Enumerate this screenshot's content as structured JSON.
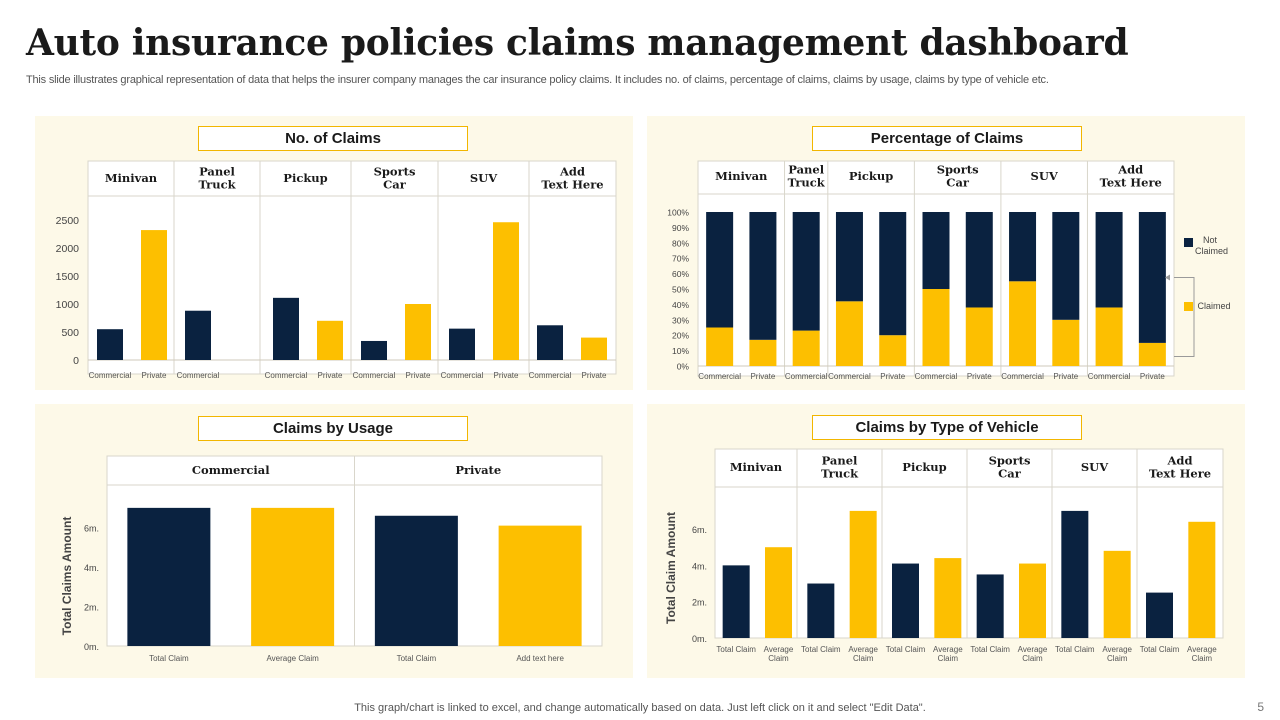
{
  "header": {
    "title": "Auto insurance policies claims management dashboard",
    "subtitle": "This slide illustrates graphical representation of data that helps the insurer company manages the car insurance policy claims. It includes no. of claims, percentage of claims, claims by usage, claims by type  of vehicle etc."
  },
  "footer": {
    "note": "This graph/chart is linked to excel,  and change automatically based on data. Just left click on it and select \"Edit Data\".",
    "page_number": "5"
  },
  "colors": {
    "navy": "#0a2240",
    "gold": "#fdbf00",
    "panel_bg": "#fdf9e8",
    "title_border": "#f2b600"
  },
  "panels": {
    "claims_count": {
      "title": "No. of Claims"
    },
    "claims_percent": {
      "title": "Percentage of Claims"
    },
    "claims_usage": {
      "title": "Claims by Usage"
    },
    "claims_vehicle": {
      "title": "Claims by Type of Vehicle"
    }
  },
  "legend": {
    "not_claimed": "Not Claimed",
    "claimed": "Claimed"
  },
  "chart_data": [
    {
      "id": "claims_count",
      "type": "bar",
      "title": "No. of Claims",
      "groups": [
        "Minivan",
        "Panel Truck",
        "Pickup",
        "Sports Car",
        "SUV",
        "Add Text Here"
      ],
      "categories": [
        "Commercial",
        "Private",
        "Commercial",
        "",
        "Commercial",
        "Private",
        "Commercial",
        "Private",
        "Commercial",
        "Private",
        "Commercial",
        "Private"
      ],
      "values": [
        550,
        2320,
        880,
        0,
        1110,
        700,
        340,
        1000,
        560,
        2460,
        620,
        400
      ],
      "bar_colors": [
        "navy",
        "gold",
        "navy",
        "gold",
        "navy",
        "gold",
        "navy",
        "gold",
        "navy",
        "gold",
        "navy",
        "gold"
      ],
      "yticks": [
        "0",
        "500",
        "1000",
        "1500",
        "2000",
        "2500"
      ],
      "ylim": [
        0,
        2500
      ]
    },
    {
      "id": "claims_percent",
      "type": "bar",
      "stacked": true,
      "title": "Percentage of Claims",
      "groups": [
        "Minivan",
        "Panel Truck",
        "Pickup",
        "Sports Car",
        "SUV",
        "Add Text Here"
      ],
      "categories": [
        "Commercial",
        "Private",
        "Commercial",
        "Commercial",
        "Private",
        "Commercial",
        "Private",
        "Commercial",
        "Private",
        "Commercial",
        "Private"
      ],
      "group_sizes": [
        2,
        1,
        2,
        2,
        2,
        2
      ],
      "series": [
        {
          "name": "Claimed",
          "values": [
            25,
            17,
            23,
            42,
            20,
            50,
            38,
            55,
            30,
            38,
            15
          ]
        },
        {
          "name": "Not Claimed",
          "values": [
            75,
            83,
            77,
            58,
            80,
            50,
            62,
            45,
            70,
            62,
            85
          ]
        }
      ],
      "yticks": [
        "0%",
        "10%",
        "20%",
        "30%",
        "40%",
        "50%",
        "60%",
        "70%",
        "80%",
        "90%",
        "100%"
      ],
      "ylim": [
        0,
        100
      ]
    },
    {
      "id": "claims_usage",
      "type": "bar",
      "title": "Claims by Usage",
      "groups": [
        "Commercial",
        "Private"
      ],
      "categories": [
        "Total Claim",
        "Average Claim",
        "Total Claim",
        "Add text here"
      ],
      "values": [
        7,
        7,
        6.6,
        6.1
      ],
      "bar_colors": [
        "navy",
        "gold",
        "navy",
        "gold"
      ],
      "ylabel": "Total Claims Amount",
      "yticks": [
        "0m.",
        "2m.",
        "4m.",
        "6m."
      ],
      "ylim": [
        0,
        7.5
      ]
    },
    {
      "id": "claims_vehicle",
      "type": "bar",
      "title": "Claims by Type of Vehicle",
      "groups": [
        "Minivan",
        "Panel Truck",
        "Pickup",
        "Sports Car",
        "SUV",
        "Add Text Here"
      ],
      "categories": [
        "Total Claim",
        "Average Claim",
        "Total Claim",
        "Average Claim",
        "Total Claim",
        "Average Claim",
        "Total Claim",
        "Average Claim",
        "Total Claim",
        "Average Claim",
        "Total Claim",
        "Average Claim"
      ],
      "values": [
        4.0,
        5.0,
        3.0,
        7.0,
        4.1,
        4.4,
        3.5,
        4.1,
        7.0,
        4.8,
        2.5,
        6.4
      ],
      "bar_colors": [
        "navy",
        "gold",
        "navy",
        "gold",
        "navy",
        "gold",
        "navy",
        "gold",
        "navy",
        "gold",
        "navy",
        "gold"
      ],
      "ylabel": "Total Claim Amount",
      "yticks": [
        "0m.",
        "2m.",
        "4m.",
        "6m."
      ],
      "ylim": [
        0,
        7.6
      ]
    }
  ]
}
